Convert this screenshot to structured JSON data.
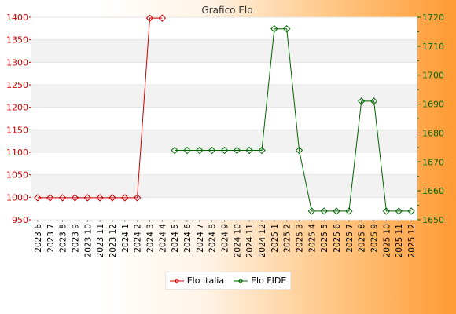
{
  "chart_data": {
    "type": "line",
    "title": "Grafico Elo",
    "categories": [
      "2023 6",
      "2023 7",
      "2023 8",
      "2023 9",
      "2023 10",
      "2023 11",
      "2023 12",
      "2024 1",
      "2024 2",
      "2024 3",
      "2024 4",
      "2024 5",
      "2024 6",
      "2024 7",
      "2024 8",
      "2024 9",
      "2024 10",
      "2024 11",
      "2024 12",
      "2025 1",
      "2025 2",
      "2025 3",
      "2025 4",
      "2025 5",
      "2025 6",
      "2025 7",
      "2025 8",
      "2025 9",
      "2025 10",
      "2025 11",
      "2025 12"
    ],
    "y_left": {
      "ylim": [
        950,
        1400
      ],
      "ticks": [
        950,
        1000,
        1050,
        1100,
        1150,
        1200,
        1250,
        1300,
        1350,
        1400
      ]
    },
    "y_right": {
      "ylim": [
        1650,
        1720
      ],
      "ticks": [
        1650,
        1660,
        1670,
        1680,
        1690,
        1700,
        1710,
        1720
      ]
    },
    "series": [
      {
        "name": "Elo Italia",
        "axis": "left",
        "color": "#cc0000",
        "values": [
          999,
          999,
          999,
          999,
          999,
          999,
          999,
          999,
          999,
          1398,
          1398,
          null,
          null,
          null,
          null,
          null,
          null,
          null,
          null,
          null,
          null,
          null,
          null,
          null,
          null,
          null,
          null,
          null,
          null,
          null,
          null
        ]
      },
      {
        "name": "Elo FIDE",
        "axis": "right",
        "color": "#006600",
        "values": [
          null,
          null,
          null,
          null,
          null,
          null,
          null,
          null,
          null,
          null,
          null,
          1674,
          1674,
          1674,
          1674,
          1674,
          1674,
          1674,
          1674,
          1716,
          1716,
          1674,
          1653,
          1653,
          1653,
          1653,
          1691,
          1691,
          1653,
          1653,
          1653
        ]
      }
    ],
    "grid": "horizontal alternating bands",
    "legend": "bottom-center"
  }
}
